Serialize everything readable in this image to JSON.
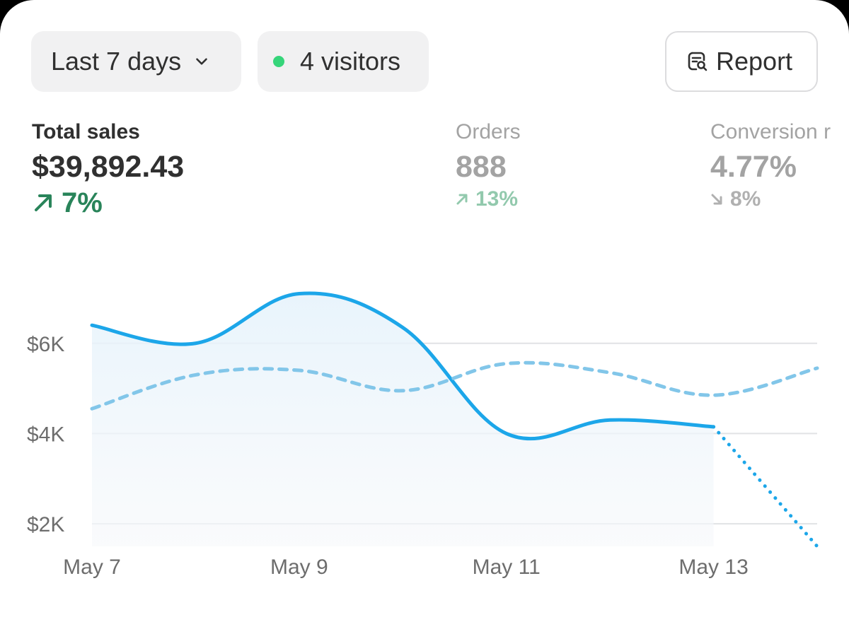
{
  "controls": {
    "range_label": "Last 7 days",
    "visitors_label": "4 visitors",
    "visitors_dot_color": "#36d57a",
    "report_label": "Report",
    "icons": [
      "chevron-down-icon",
      "report-search-icon"
    ]
  },
  "metrics": {
    "sales": {
      "label": "Total sales",
      "value": "$39,892.43",
      "delta": "7%",
      "direction": "up",
      "color": "#29845a"
    },
    "orders": {
      "label": "Orders",
      "value": "888",
      "delta": "13%",
      "direction": "up"
    },
    "conversion": {
      "label": "Conversion r",
      "value": "4.77%",
      "delta": "8%",
      "direction": "down"
    }
  },
  "chart_data": {
    "type": "line",
    "x": [
      "May 7",
      "May 8",
      "May 9",
      "May 10",
      "May 11",
      "May 12",
      "May 13",
      "May 14"
    ],
    "xtick_labels": [
      "May 7",
      "May 9",
      "May 11",
      "May 13"
    ],
    "ytick_labels": [
      "$6K",
      "$4K",
      "$2K"
    ],
    "yticks": [
      6000,
      4000,
      2000
    ],
    "ylim": [
      1500,
      7500
    ],
    "grid": true,
    "series": [
      {
        "values": [
          6400,
          6000,
          7100,
          6350,
          4000,
          4300,
          4150,
          1500
        ],
        "style": "solid",
        "projected_from_index": 6,
        "fill": true,
        "color": "#1ca6e9"
      },
      {
        "values": [
          4550,
          5300,
          5400,
          4950,
          5550,
          5350,
          4850,
          5450
        ],
        "style": "dashed",
        "color": "#82c6e9"
      }
    ]
  }
}
